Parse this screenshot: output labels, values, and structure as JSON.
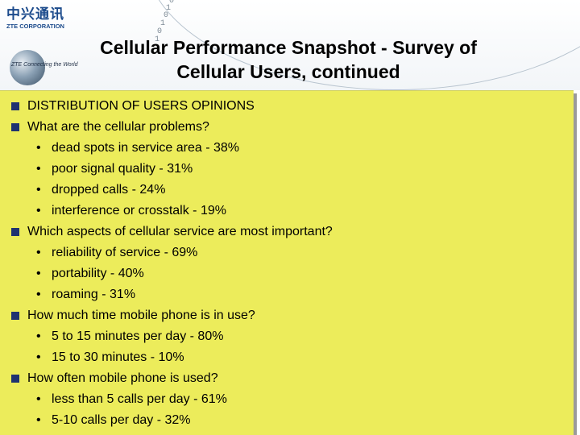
{
  "logo": {
    "cn": "中兴通讯",
    "en": "ZTE CORPORATION",
    "tagline": "ZTE Connecting the World"
  },
  "decor": {
    "binary": [
      "1",
      "0",
      "1",
      "0",
      "1",
      "0",
      "1"
    ]
  },
  "title": {
    "line1": "Cellular Performance Snapshot - Survey of",
    "line2": "Cellular Users, continued"
  },
  "colors": {
    "panel": "#ecec5b",
    "bullet": "#1f3370"
  },
  "items": [
    {
      "level": 1,
      "text": "DISTRIBUTION OF USERS OPINIONS"
    },
    {
      "level": 1,
      "text": "What are the cellular problems?"
    },
    {
      "level": 2,
      "text": "dead spots in service area - 38%"
    },
    {
      "level": 2,
      "text": "poor signal quality - 31%"
    },
    {
      "level": 2,
      "text": "dropped calls - 24%"
    },
    {
      "level": 2,
      "text": "interference or crosstalk - 19%"
    },
    {
      "level": 1,
      "text": "Which aspects of cellular service are most important?"
    },
    {
      "level": 2,
      "text": "reliability of service - 69%"
    },
    {
      "level": 2,
      "text": "portability - 40%"
    },
    {
      "level": 2,
      "text": "roaming - 31%"
    },
    {
      "level": 1,
      "text": "How much time mobile phone is in use?"
    },
    {
      "level": 2,
      "text": "5 to 15 minutes per day - 80%"
    },
    {
      "level": 2,
      "text": "15 to 30 minutes - 10%"
    },
    {
      "level": 1,
      "text": "How often mobile phone is used?"
    },
    {
      "level": 2,
      "text": "less than 5 calls per day - 61%"
    },
    {
      "level": 2,
      "text": "5-10 calls per day - 32%"
    }
  ]
}
